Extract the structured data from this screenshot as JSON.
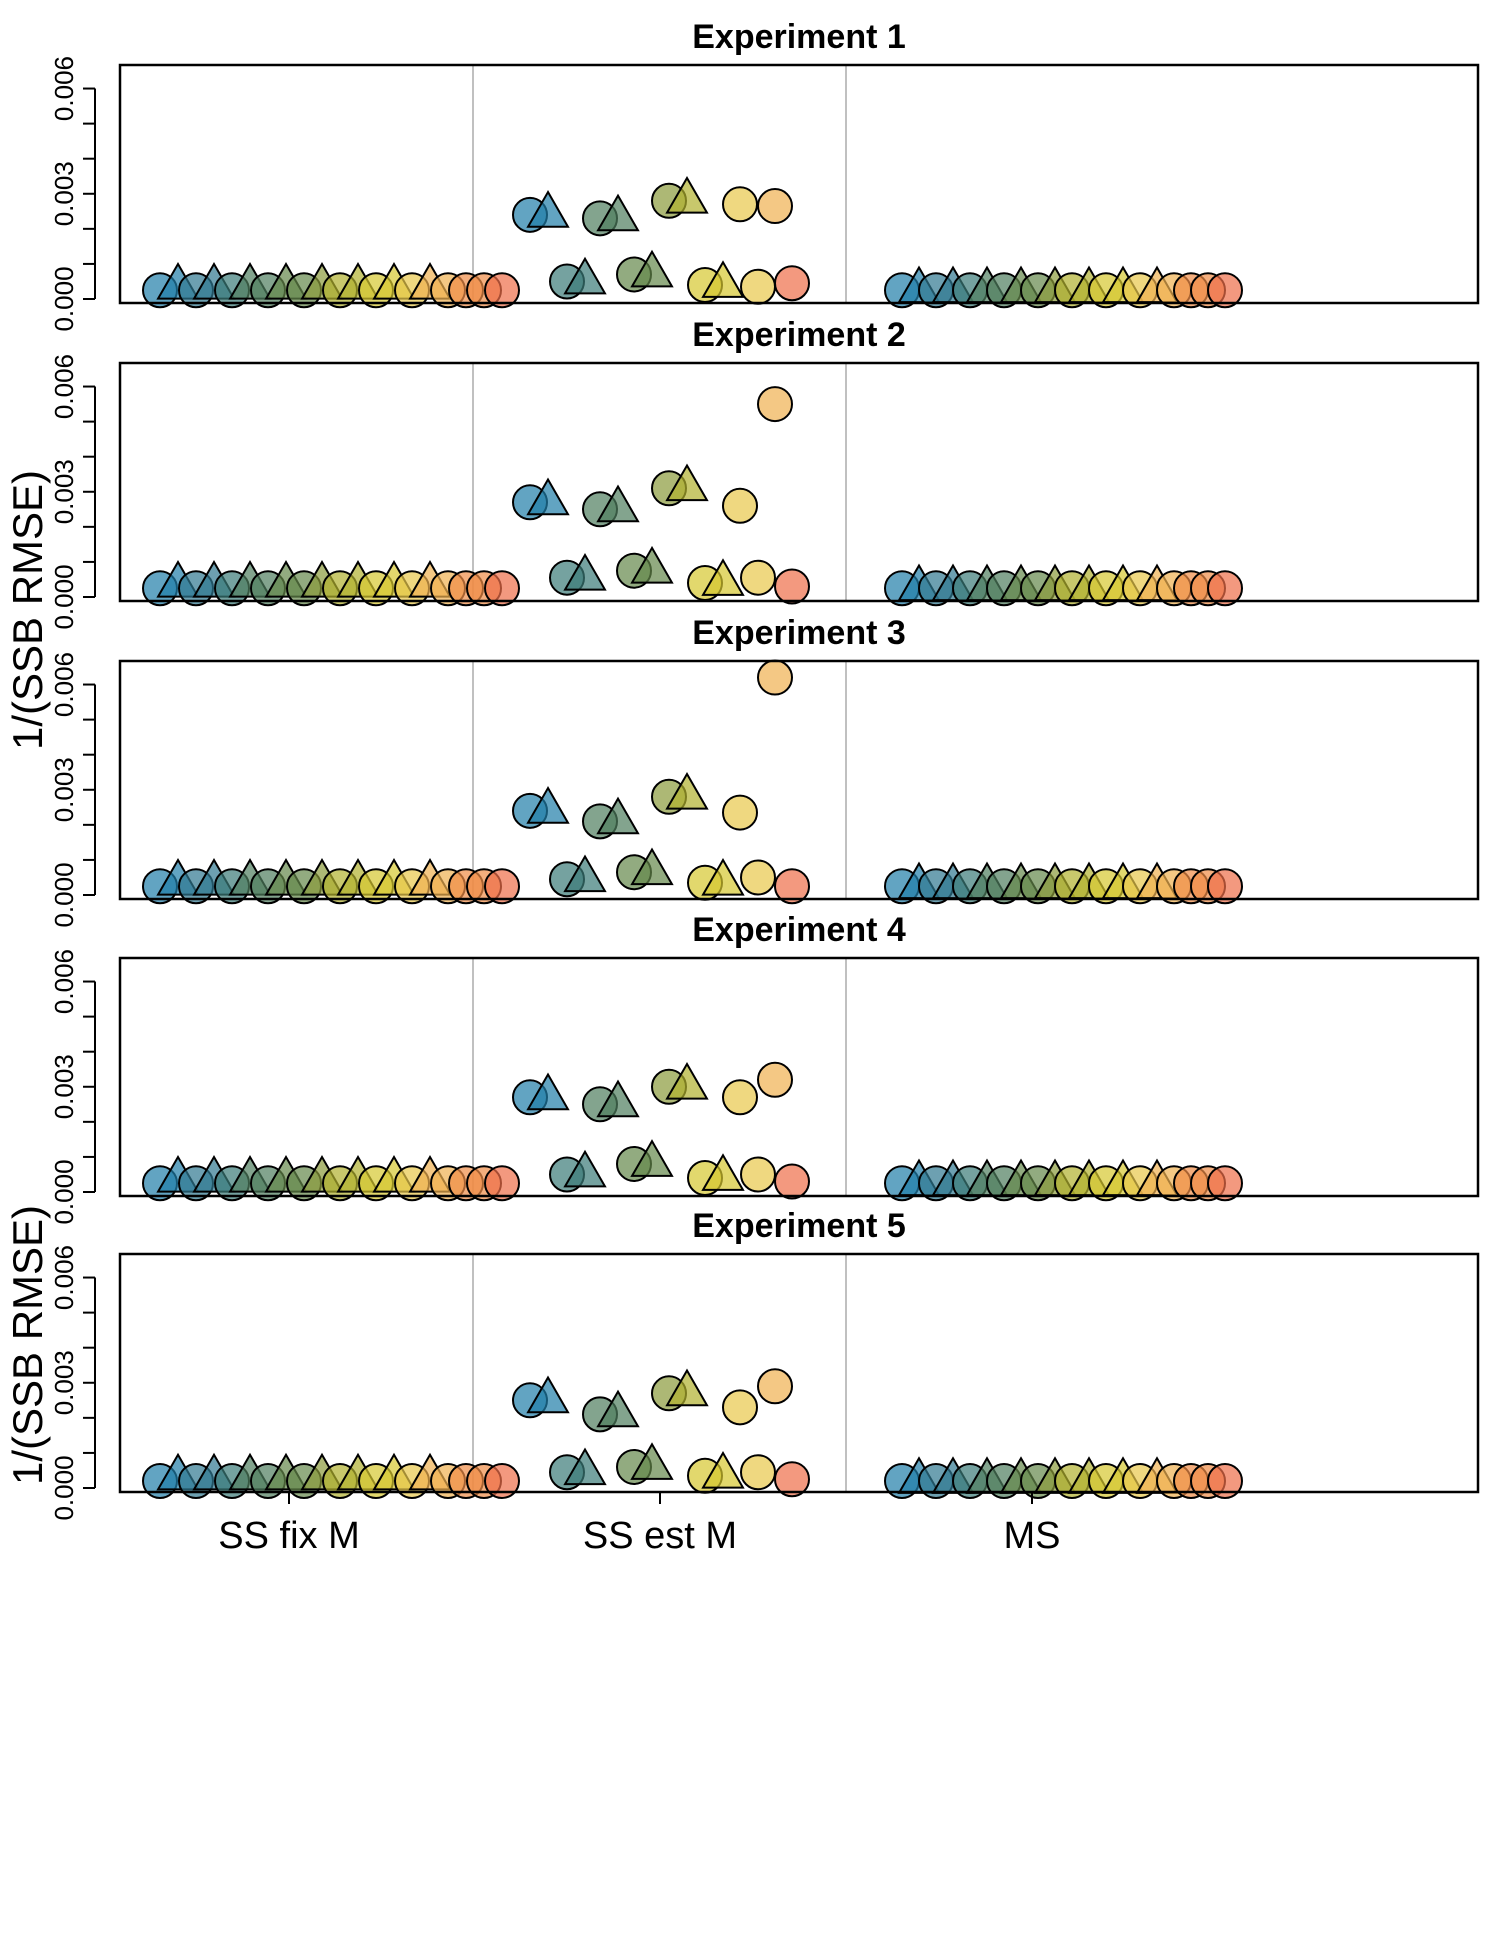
{
  "colors": [
    "#1f7ea8",
    "#2f7890",
    "#3a7a78",
    "#4f7d5e",
    "#64884a",
    "#8a9a3a",
    "#b0b02e",
    "#d6c82f",
    "#e8c84a",
    "#f0b050",
    "#ef8c46",
    "#ee6e48"
  ],
  "chart_data": {
    "type": "scatter",
    "ylabel": "1/(SSB RMSE)",
    "yticks": [
      "0.000",
      "0.003",
      "0.006"
    ],
    "ylim": [
      0,
      0.0065
    ],
    "categories": [
      "SS fix M",
      "SS est M",
      "MS"
    ],
    "separators": true,
    "panels": [
      {
        "title": "Experiment 1",
        "ss_fix_m": [
          0.00025,
          0.0004,
          0.00025,
          0.0004,
          0.00025,
          0.0004,
          0.00025,
          0.0004,
          0.00025,
          0.0004,
          0.00025,
          0.0004,
          0.00025,
          0.0004,
          0.00025,
          0.0004,
          0.00025,
          0.00025,
          0.00025,
          0.00025
        ],
        "ss_est_m": [
          {
            "shape": "circle",
            "value": 0.0024,
            "color_index": 0
          },
          {
            "shape": "triangle",
            "value": 0.00245,
            "color_index": 0
          },
          {
            "shape": "circle",
            "value": 0.0005,
            "color_index": 2
          },
          {
            "shape": "triangle",
            "value": 0.00055,
            "color_index": 2
          },
          {
            "shape": "circle",
            "value": 0.0023,
            "color_index": 3
          },
          {
            "shape": "triangle",
            "value": 0.00235,
            "color_index": 3
          },
          {
            "shape": "circle",
            "value": 0.0007,
            "color_index": 4
          },
          {
            "shape": "triangle",
            "value": 0.00075,
            "color_index": 4
          },
          {
            "shape": "circle",
            "value": 0.0028,
            "color_index": 5
          },
          {
            "shape": "triangle",
            "value": 0.00285,
            "color_index": 6
          },
          {
            "shape": "circle",
            "value": 0.0004,
            "color_index": 7
          },
          {
            "shape": "triangle",
            "value": 0.00045,
            "color_index": 7
          },
          {
            "shape": "circle",
            "value": 0.0027,
            "color_index": 8
          },
          {
            "shape": "circle",
            "value": 0.00035,
            "color_index": 8
          },
          {
            "shape": "circle",
            "value": 0.00265,
            "color_index": 9
          },
          {
            "shape": "circle",
            "value": 0.00045,
            "color_index": 11
          }
        ],
        "ms": [
          0.00025,
          0.0003,
          0.00025,
          0.0003,
          0.00025,
          0.0003,
          0.00025,
          0.0003,
          0.00025,
          0.0003,
          0.00025,
          0.0003,
          0.00025,
          0.0003,
          0.00025,
          0.0003,
          0.00025,
          0.00025,
          0.00025,
          0.00025
        ]
      },
      {
        "title": "Experiment 2",
        "ss_fix_m": [
          0.00025,
          0.0004,
          0.00025,
          0.0004,
          0.00025,
          0.0004,
          0.00025,
          0.0004,
          0.00025,
          0.0004,
          0.00025,
          0.0004,
          0.00025,
          0.0004,
          0.00025,
          0.0004,
          0.00025,
          0.00025,
          0.00025,
          0.00025
        ],
        "ss_est_m": [
          {
            "shape": "circle",
            "value": 0.0027,
            "color_index": 0
          },
          {
            "shape": "triangle",
            "value": 0.00275,
            "color_index": 0
          },
          {
            "shape": "circle",
            "value": 0.00055,
            "color_index": 2
          },
          {
            "shape": "triangle",
            "value": 0.0006,
            "color_index": 2
          },
          {
            "shape": "circle",
            "value": 0.0025,
            "color_index": 3
          },
          {
            "shape": "triangle",
            "value": 0.00255,
            "color_index": 3
          },
          {
            "shape": "circle",
            "value": 0.00075,
            "color_index": 4
          },
          {
            "shape": "triangle",
            "value": 0.0008,
            "color_index": 4
          },
          {
            "shape": "circle",
            "value": 0.0031,
            "color_index": 5
          },
          {
            "shape": "triangle",
            "value": 0.00315,
            "color_index": 6
          },
          {
            "shape": "circle",
            "value": 0.0004,
            "color_index": 7
          },
          {
            "shape": "triangle",
            "value": 0.00045,
            "color_index": 7
          },
          {
            "shape": "circle",
            "value": 0.0026,
            "color_index": 8
          },
          {
            "shape": "circle",
            "value": 0.00055,
            "color_index": 8
          },
          {
            "shape": "circle",
            "value": 0.0055,
            "color_index": 9
          },
          {
            "shape": "circle",
            "value": 0.0003,
            "color_index": 11
          }
        ],
        "ms": [
          0.00025,
          0.0003,
          0.00025,
          0.0003,
          0.00025,
          0.0003,
          0.00025,
          0.0003,
          0.00025,
          0.0003,
          0.00025,
          0.0003,
          0.00025,
          0.0003,
          0.00025,
          0.0003,
          0.00025,
          0.00025,
          0.00025,
          0.00025
        ]
      },
      {
        "title": "Experiment 3",
        "ss_fix_m": [
          0.00025,
          0.0004,
          0.00025,
          0.0004,
          0.00025,
          0.0004,
          0.00025,
          0.0004,
          0.00025,
          0.0004,
          0.00025,
          0.0004,
          0.00025,
          0.0004,
          0.00025,
          0.0004,
          0.00025,
          0.00025,
          0.00025,
          0.00025
        ],
        "ss_est_m": [
          {
            "shape": "circle",
            "value": 0.0024,
            "color_index": 0
          },
          {
            "shape": "triangle",
            "value": 0.00245,
            "color_index": 0
          },
          {
            "shape": "circle",
            "value": 0.00045,
            "color_index": 2
          },
          {
            "shape": "triangle",
            "value": 0.0005,
            "color_index": 2
          },
          {
            "shape": "circle",
            "value": 0.0021,
            "color_index": 3
          },
          {
            "shape": "triangle",
            "value": 0.00215,
            "color_index": 3
          },
          {
            "shape": "circle",
            "value": 0.00065,
            "color_index": 4
          },
          {
            "shape": "triangle",
            "value": 0.0007,
            "color_index": 4
          },
          {
            "shape": "circle",
            "value": 0.0028,
            "color_index": 5
          },
          {
            "shape": "triangle",
            "value": 0.00285,
            "color_index": 6
          },
          {
            "shape": "circle",
            "value": 0.00035,
            "color_index": 7
          },
          {
            "shape": "triangle",
            "value": 0.0004,
            "color_index": 7
          },
          {
            "shape": "circle",
            "value": 0.00235,
            "color_index": 8
          },
          {
            "shape": "circle",
            "value": 0.0005,
            "color_index": 8
          },
          {
            "shape": "circle",
            "value": 0.0062,
            "color_index": 9
          },
          {
            "shape": "circle",
            "value": 0.00025,
            "color_index": 11
          }
        ],
        "ms": [
          0.00025,
          0.0003,
          0.00025,
          0.0003,
          0.00025,
          0.0003,
          0.00025,
          0.0003,
          0.00025,
          0.0003,
          0.00025,
          0.0003,
          0.00025,
          0.0003,
          0.00025,
          0.0003,
          0.00025,
          0.00025,
          0.00025,
          0.00025
        ]
      },
      {
        "title": "Experiment 4",
        "ss_fix_m": [
          0.00025,
          0.0004,
          0.00025,
          0.0004,
          0.00025,
          0.0004,
          0.00025,
          0.0004,
          0.00025,
          0.0004,
          0.00025,
          0.0004,
          0.00025,
          0.0004,
          0.00025,
          0.0004,
          0.00025,
          0.00025,
          0.00025,
          0.00025
        ],
        "ss_est_m": [
          {
            "shape": "circle",
            "value": 0.0027,
            "color_index": 0
          },
          {
            "shape": "triangle",
            "value": 0.00275,
            "color_index": 0
          },
          {
            "shape": "circle",
            "value": 0.0005,
            "color_index": 2
          },
          {
            "shape": "triangle",
            "value": 0.00055,
            "color_index": 2
          },
          {
            "shape": "circle",
            "value": 0.0025,
            "color_index": 3
          },
          {
            "shape": "triangle",
            "value": 0.00255,
            "color_index": 3
          },
          {
            "shape": "circle",
            "value": 0.0008,
            "color_index": 4
          },
          {
            "shape": "triangle",
            "value": 0.00085,
            "color_index": 4
          },
          {
            "shape": "circle",
            "value": 0.003,
            "color_index": 5
          },
          {
            "shape": "triangle",
            "value": 0.00305,
            "color_index": 6
          },
          {
            "shape": "circle",
            "value": 0.0004,
            "color_index": 7
          },
          {
            "shape": "triangle",
            "value": 0.00045,
            "color_index": 7
          },
          {
            "shape": "circle",
            "value": 0.0027,
            "color_index": 8
          },
          {
            "shape": "circle",
            "value": 0.0005,
            "color_index": 8
          },
          {
            "shape": "circle",
            "value": 0.0032,
            "color_index": 9
          },
          {
            "shape": "circle",
            "value": 0.0003,
            "color_index": 11
          }
        ],
        "ms": [
          0.00025,
          0.0003,
          0.00025,
          0.0003,
          0.00025,
          0.0003,
          0.00025,
          0.0003,
          0.00025,
          0.0003,
          0.00025,
          0.0003,
          0.00025,
          0.0003,
          0.00025,
          0.0003,
          0.00025,
          0.00025,
          0.00025,
          0.00025
        ]
      },
      {
        "title": "Experiment 5",
        "ss_fix_m": [
          0.0002,
          0.00035,
          0.0002,
          0.00035,
          0.0002,
          0.00035,
          0.0002,
          0.00035,
          0.0002,
          0.00035,
          0.0002,
          0.00035,
          0.0002,
          0.00035,
          0.0002,
          0.00035,
          0.0002,
          0.0002,
          0.0002,
          0.0002
        ],
        "ss_est_m": [
          {
            "shape": "circle",
            "value": 0.0025,
            "color_index": 0
          },
          {
            "shape": "triangle",
            "value": 0.00255,
            "color_index": 0
          },
          {
            "shape": "circle",
            "value": 0.00045,
            "color_index": 2
          },
          {
            "shape": "triangle",
            "value": 0.0005,
            "color_index": 2
          },
          {
            "shape": "circle",
            "value": 0.0021,
            "color_index": 3
          },
          {
            "shape": "triangle",
            "value": 0.00215,
            "color_index": 3
          },
          {
            "shape": "circle",
            "value": 0.0006,
            "color_index": 4
          },
          {
            "shape": "triangle",
            "value": 0.00065,
            "color_index": 4
          },
          {
            "shape": "circle",
            "value": 0.0027,
            "color_index": 5
          },
          {
            "shape": "triangle",
            "value": 0.00275,
            "color_index": 6
          },
          {
            "shape": "circle",
            "value": 0.00035,
            "color_index": 7
          },
          {
            "shape": "triangle",
            "value": 0.0004,
            "color_index": 7
          },
          {
            "shape": "circle",
            "value": 0.0023,
            "color_index": 8
          },
          {
            "shape": "circle",
            "value": 0.00045,
            "color_index": 8
          },
          {
            "shape": "circle",
            "value": 0.0029,
            "color_index": 9
          },
          {
            "shape": "circle",
            "value": 0.00025,
            "color_index": 11
          }
        ],
        "ms": [
          0.0002,
          0.00025,
          0.0002,
          0.00025,
          0.0002,
          0.00025,
          0.0002,
          0.00025,
          0.0002,
          0.00025,
          0.0002,
          0.00025,
          0.0002,
          0.00025,
          0.0002,
          0.00025,
          0.0002,
          0.0002,
          0.0002,
          0.0002
        ]
      }
    ]
  }
}
